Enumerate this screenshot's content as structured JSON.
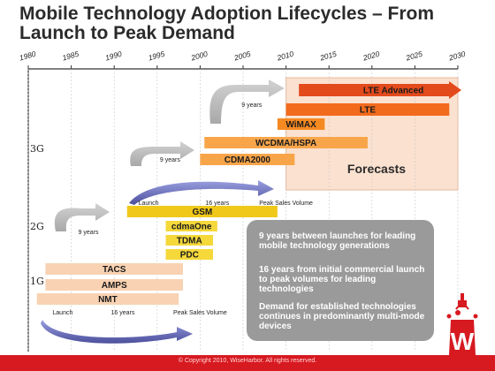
{
  "title_line1": "Mobile Technology Adoption Lifecycles – From",
  "title_line2": "Launch to Peak Demand",
  "chart_data": {
    "type": "bar",
    "subtype": "timeline-gantt",
    "x_ticks": [
      1980,
      1985,
      1990,
      1995,
      2000,
      2005,
      2010,
      2015,
      2020,
      2025,
      2030
    ],
    "xlim": [
      1980,
      2030
    ],
    "generation_labels": [
      "3G",
      "2G",
      "1G"
    ],
    "technologies": [
      {
        "name": "LTE Advanced",
        "generation": "3G",
        "start": 2011.5,
        "end": 2030,
        "color": "#e34a1c",
        "arrow": true
      },
      {
        "name": "LTE",
        "generation": "3G",
        "start": 2010,
        "end": 2029,
        "color": "#f26b1d"
      },
      {
        "name": "WiMAX",
        "generation": "3G",
        "start": 2009,
        "end": 2014.5,
        "color": "#f58a22"
      },
      {
        "name": "WCDMA/HSPA",
        "generation": "3G",
        "start": 2000.5,
        "end": 2019.5,
        "color": "#f8a54a"
      },
      {
        "name": "CDMA2000",
        "generation": "3G",
        "start": 2000,
        "end": 2011,
        "color": "#f8a54a"
      },
      {
        "name": "GSM",
        "generation": "2G",
        "start": 1991.5,
        "end": 2009,
        "color": "#f0c81a"
      },
      {
        "name": "cdmaOne",
        "generation": "2G",
        "start": 1996,
        "end": 2002,
        "color": "#f5d83a"
      },
      {
        "name": "TDMA",
        "generation": "2G",
        "start": 1996,
        "end": 2001.5,
        "color": "#f5d83a"
      },
      {
        "name": "PDC",
        "generation": "2G",
        "start": 1996,
        "end": 2001.5,
        "color": "#f5d83a"
      },
      {
        "name": "TACS",
        "generation": "1G",
        "start": 1982,
        "end": 1998,
        "color": "#f8d2b2"
      },
      {
        "name": "AMPS",
        "generation": "1G",
        "start": 1982,
        "end": 1998,
        "color": "#f8d2b2"
      },
      {
        "name": "NMT",
        "generation": "1G",
        "start": 1981,
        "end": 1997.5,
        "color": "#f8d2b2"
      }
    ],
    "forecast_label": "Forecasts",
    "forecast_range": [
      2010,
      2030
    ],
    "annotations": [
      {
        "text": "Launch",
        "x": 1984,
        "kind": "launch"
      },
      {
        "text": "16 years",
        "x": 1991,
        "kind": "span"
      },
      {
        "text": "Peak Sales Volume",
        "x": 2000,
        "kind": "peak"
      },
      {
        "text": "Launch",
        "x": 1994,
        "kind": "launch"
      },
      {
        "text": "16 years",
        "x": 2002,
        "kind": "span"
      },
      {
        "text": "Peak Sales Volume",
        "x": 2010,
        "kind": "peak"
      },
      {
        "text": "9 years",
        "x": 1987,
        "kind": "gap"
      },
      {
        "text": "9 years",
        "x": 1996.5,
        "kind": "gap"
      },
      {
        "text": "9 years",
        "x": 2006,
        "kind": "gap"
      }
    ]
  },
  "notes": [
    "9 years between launches for leading mobile technology generations",
    "16 years from initial commercial launch to peak volumes for leading technologies",
    "Demand for established technologies continues in predominantly multi-mode devices"
  ],
  "copyright": "© Copyright 2010, WiseHarbor. All rights reserved.",
  "logo_letter": "W",
  "colors": {
    "brand_red": "#d71920",
    "forecast_fill": "#fbe1cf",
    "note_box": "#9a9a9a"
  }
}
